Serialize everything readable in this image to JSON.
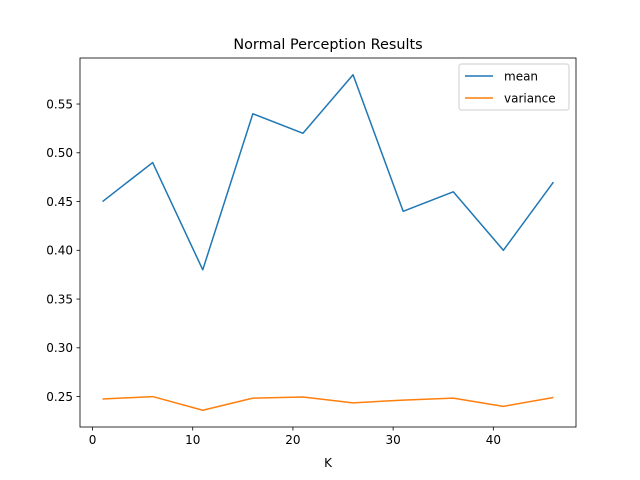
{
  "chart_data": {
    "type": "line",
    "title": "Normal Perception Results",
    "xlabel": "K",
    "ylabel": "",
    "x": [
      1,
      6,
      11,
      16,
      21,
      26,
      31,
      36,
      41,
      46
    ],
    "series": [
      {
        "name": "mean",
        "color": "#1f77b4",
        "values": [
          0.45,
          0.49,
          0.38,
          0.54,
          0.52,
          0.58,
          0.44,
          0.46,
          0.4,
          0.47
        ]
      },
      {
        "name": "variance",
        "color": "#ff7f0e",
        "values": [
          0.2475,
          0.25,
          0.236,
          0.2484,
          0.2496,
          0.2436,
          0.2464,
          0.2484,
          0.24,
          0.2491
        ]
      }
    ],
    "xlim": [
      -1.25,
      48.25
    ],
    "ylim": [
      0.2188,
      0.5972
    ],
    "xticks": [
      0,
      10,
      20,
      30,
      40
    ],
    "yticks": [
      0.25,
      0.3,
      0.35,
      0.4,
      0.45,
      0.5,
      0.55
    ],
    "ytick_labels": [
      "0.25",
      "0.30",
      "0.35",
      "0.40",
      "0.45",
      "0.50",
      "0.55"
    ],
    "grid": false,
    "legend_position": "top-right"
  }
}
